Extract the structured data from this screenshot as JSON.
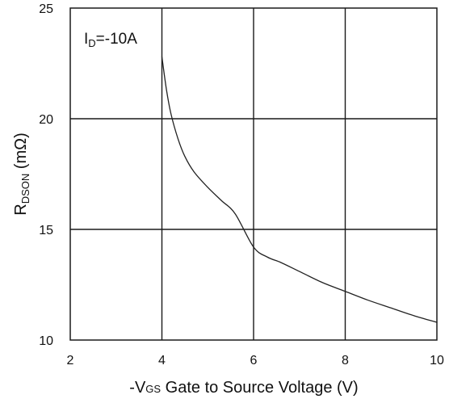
{
  "chart_data": {
    "type": "line",
    "title": "",
    "annotation": {
      "main": "I",
      "sub": "D",
      "rest": "=-10A"
    },
    "xlabel": {
      "prefix": "-V",
      "sub": "GS",
      "rest": " Gate to Source Voltage (V)"
    },
    "ylabel": {
      "main": "R",
      "sub": "DSON",
      "rest": " (mΩ)"
    },
    "xlim": [
      2,
      10
    ],
    "ylim": [
      10,
      25
    ],
    "x_ticks": [
      2,
      4,
      6,
      8,
      10
    ],
    "y_ticks": [
      10,
      15,
      20,
      25
    ],
    "x_tick_labels": [
      "2",
      "4",
      "6",
      "8",
      "10"
    ],
    "y_tick_labels": [
      "10",
      "15",
      "20",
      "25"
    ],
    "grid": true,
    "series": [
      {
        "name": "",
        "color": "#222222",
        "x": [
          4.0,
          4.1,
          4.2,
          4.35,
          4.5,
          4.7,
          5.0,
          5.3,
          5.6,
          6.0,
          6.3,
          6.6,
          7.0,
          7.5,
          8.0,
          8.5,
          9.0,
          9.5,
          10.0
        ],
        "y": [
          22.8,
          21.3,
          20.2,
          19.1,
          18.3,
          17.6,
          16.9,
          16.3,
          15.7,
          14.2,
          13.75,
          13.5,
          13.1,
          12.6,
          12.2,
          11.8,
          11.45,
          11.1,
          10.8
        ]
      }
    ]
  }
}
